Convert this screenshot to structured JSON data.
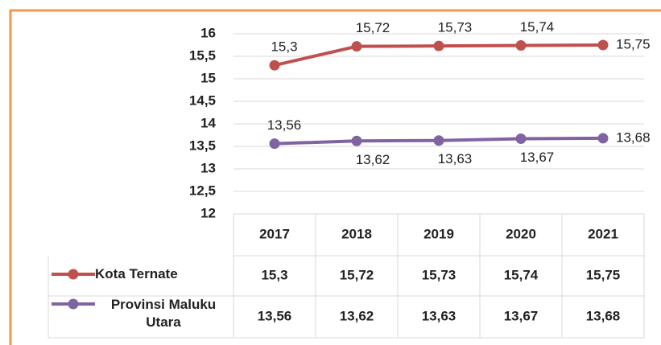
{
  "chart_data": {
    "type": "line",
    "categories": [
      "2017",
      "2018",
      "2019",
      "2020",
      "2021"
    ],
    "series": [
      {
        "name": "Kota Ternate",
        "color": "#c0504d",
        "values": [
          15.3,
          15.72,
          15.73,
          15.74,
          15.75
        ],
        "value_labels": [
          "15,3",
          "15,72",
          "15,73",
          "15,74",
          "15,75"
        ]
      },
      {
        "name": "Provinsi Maluku Utara",
        "color": "#8064a2",
        "values": [
          13.56,
          13.62,
          13.63,
          13.67,
          13.68
        ],
        "value_labels": [
          "13,56",
          "13,62",
          "13,63",
          "13,67",
          "13,68"
        ]
      }
    ],
    "ylim": [
      12,
      16
    ],
    "yticks": [
      12,
      {
        "value": 12.5,
        "label": "12,5"
      },
      13,
      {
        "value": 13.5,
        "label": "13,5"
      },
      14,
      {
        "value": 14.5,
        "label": "14,5"
      },
      15,
      {
        "value": 15.5,
        "label": "15,5"
      },
      16
    ],
    "grid": true,
    "data_table": true
  }
}
